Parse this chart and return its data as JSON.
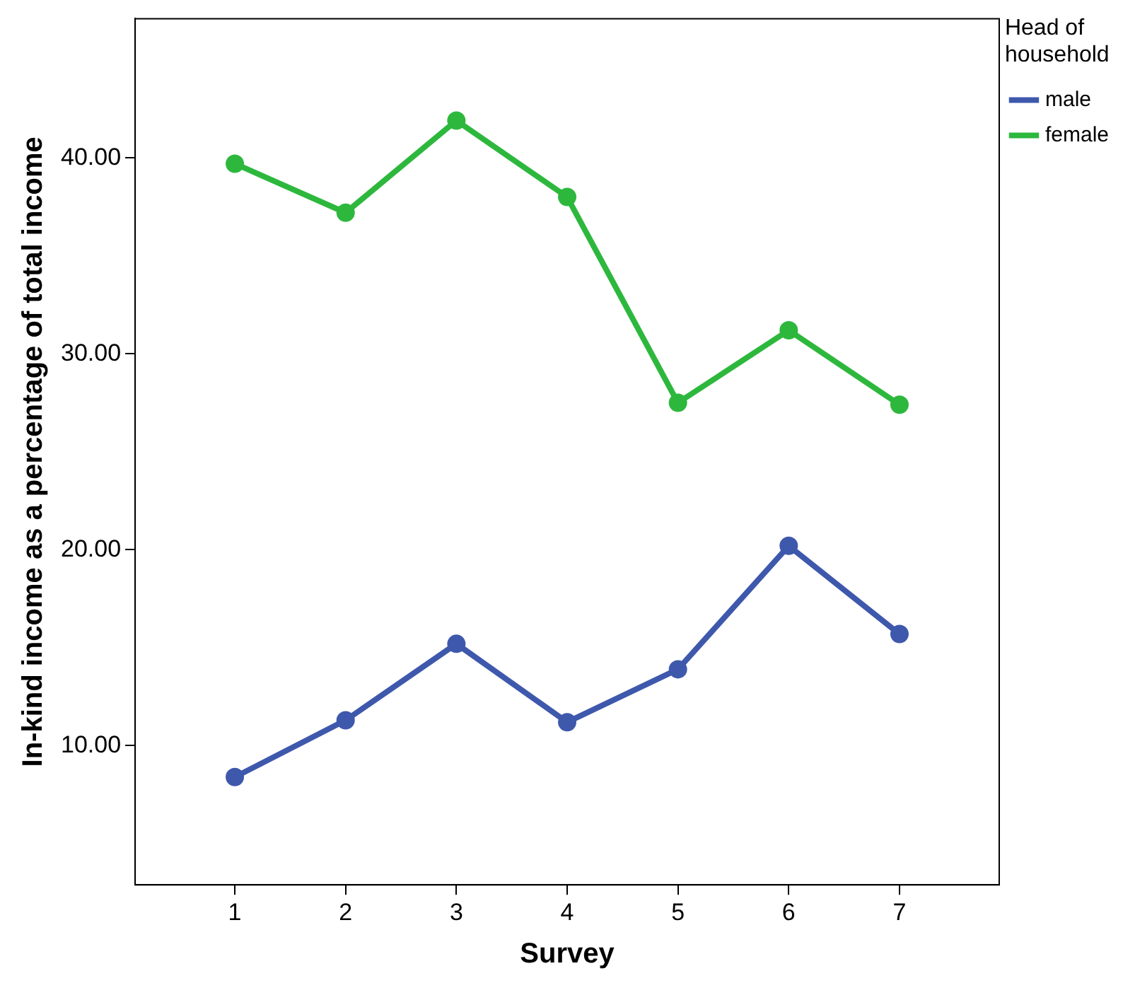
{
  "chart_data": {
    "type": "line",
    "xlabel": "Survey",
    "ylabel": "In-kind income as a percentage of total income",
    "legend_title": "Head of household",
    "x": [
      1,
      2,
      3,
      4,
      5,
      6,
      7
    ],
    "series": [
      {
        "name": "male",
        "color": "#3e58ac",
        "values": [
          8.4,
          11.3,
          15.2,
          11.2,
          13.9,
          20.2,
          15.7
        ]
      },
      {
        "name": "female",
        "color": "#2db83d",
        "values": [
          39.7,
          37.2,
          41.9,
          38.0,
          27.5,
          31.2,
          27.4
        ]
      }
    ],
    "xlim": [
      0.1,
      7.9
    ],
    "xticks": [
      1,
      2,
      3,
      4,
      5,
      6,
      7
    ],
    "ylim": [
      2.9,
      47.1
    ],
    "yticks": [
      {
        "value": 10,
        "label": "10.00"
      },
      {
        "value": 20,
        "label": "20.00"
      },
      {
        "value": 30,
        "label": "30.00"
      },
      {
        "value": 40,
        "label": "40.00"
      }
    ],
    "grid": false,
    "legend": "top right",
    "marker": "circle",
    "line_style": "solid"
  }
}
